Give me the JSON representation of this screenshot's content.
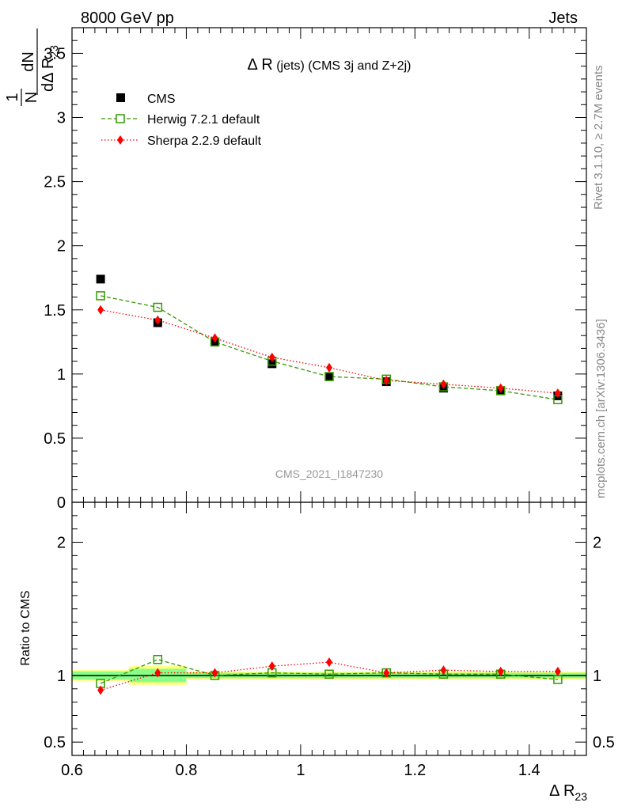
{
  "header": {
    "left": "8000 GeV pp",
    "right": "Jets"
  },
  "side_text": {
    "rivet": "Rivet 3.1.10, ≥ 2.7M events",
    "mcplots": "mcplots.cern.ch [arXiv:1306.3436]"
  },
  "watermark": "CMS_2021_I1847230",
  "chart_data": [
    {
      "type": "scatter",
      "title_main": "Δ R",
      "title_rest": " (jets) (CMS 3j and Z+2j)",
      "ylabel_top": "1",
      "ylabel_N": "N",
      "ylabel_dN": "dN",
      "ylabel_d": "dΔ R",
      "ylabel_sub": "23",
      "xlim": [
        0.6,
        1.5
      ],
      "ylim": [
        0,
        3.7
      ],
      "yticks": [
        {
          "v": 0,
          "label": "0"
        },
        {
          "v": 0.5,
          "label": "0.5"
        },
        {
          "v": 1,
          "label": "1"
        },
        {
          "v": 1.5,
          "label": "1.5"
        },
        {
          "v": 2,
          "label": "2"
        },
        {
          "v": 2.5,
          "label": "2.5"
        },
        {
          "v": 3,
          "label": "3"
        },
        {
          "v": 3.5,
          "label": "3.5"
        }
      ],
      "x": [
        0.65,
        0.75,
        0.85,
        0.95,
        1.05,
        1.15,
        1.25,
        1.35,
        1.45
      ],
      "series": [
        {
          "name": "CMS",
          "marker": "square-filled",
          "color": "#000000",
          "values": [
            1.74,
            1.4,
            1.25,
            1.08,
            0.98,
            0.94,
            0.89,
            0.87,
            0.83
          ]
        },
        {
          "name": "Herwig 7.2.1 default",
          "marker": "square-open",
          "color": "#339900",
          "line": "dashed",
          "values": [
            1.61,
            1.52,
            1.25,
            1.1,
            0.98,
            0.96,
            0.9,
            0.87,
            0.8
          ]
        },
        {
          "name": "Sherpa 2.2.9 default",
          "marker": "diamond",
          "color": "#ff0000",
          "line": "dotted",
          "values": [
            1.5,
            1.42,
            1.28,
            1.13,
            1.05,
            0.95,
            0.92,
            0.89,
            0.85
          ]
        }
      ],
      "legend": "top-left"
    },
    {
      "type": "scatter",
      "ylabel": "Ratio to CMS",
      "xlabel_main": "Δ R",
      "xlabel_sub": "23",
      "xlim": [
        0.6,
        1.5
      ],
      "ylim": [
        0.4,
        2.3
      ],
      "xticks": [
        {
          "v": 0.6,
          "label": "0.6"
        },
        {
          "v": 0.8,
          "label": "0.8"
        },
        {
          "v": 1.0,
          "label": "1"
        },
        {
          "v": 1.2,
          "label": "1.2"
        },
        {
          "v": 1.4,
          "label": "1.4"
        }
      ],
      "yticks": [
        {
          "v": 0.5,
          "label": "0.5"
        },
        {
          "v": 1,
          "label": "1"
        },
        {
          "v": 2,
          "label": "2"
        }
      ],
      "x": [
        0.65,
        0.75,
        0.85,
        0.95,
        1.05,
        1.15,
        1.25,
        1.35,
        1.45
      ],
      "series": [
        {
          "name": "Herwig 7.2.1 default",
          "color": "#339900",
          "values": [
            0.94,
            1.12,
            1.0,
            1.02,
            1.01,
            1.02,
            1.01,
            1.01,
            0.97
          ]
        },
        {
          "name": "Sherpa 2.2.9 default",
          "color": "#ff0000",
          "values": [
            0.89,
            1.02,
            1.02,
            1.07,
            1.1,
            1.02,
            1.04,
            1.03,
            1.03
          ]
        }
      ],
      "uncertainty_band": {
        "stat": [
          0.03,
          0.05,
          0.02,
          0.02,
          0.02,
          0.02,
          0.02,
          0.02,
          0.02
        ],
        "total": [
          0.04,
          0.07,
          0.03,
          0.03,
          0.03,
          0.03,
          0.03,
          0.03,
          0.03
        ],
        "stat_color": "#88ff88",
        "total_color": "#ffff77"
      }
    }
  ]
}
